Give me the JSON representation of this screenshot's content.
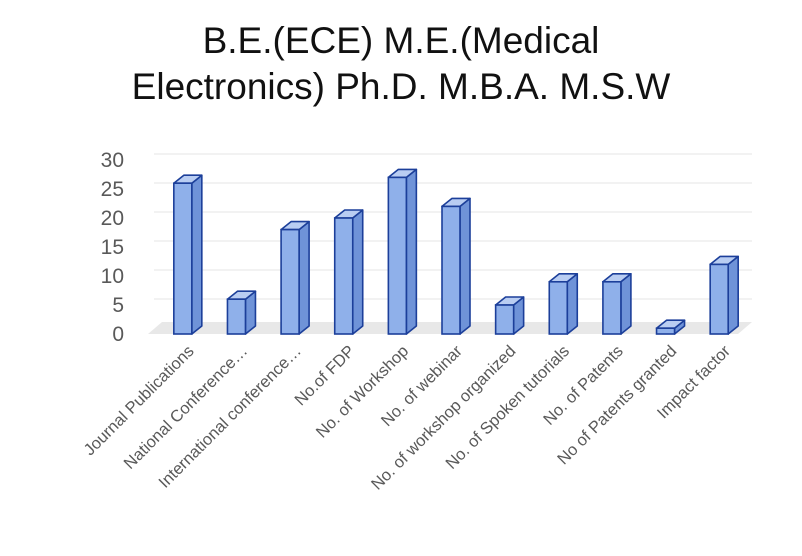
{
  "chart_data": {
    "type": "bar",
    "title_lines": [
      "B.E.(ECE) M.E.(Medical",
      "Electronics) Ph.D. M.B.A. M.S.W"
    ],
    "categories": [
      "Journal Publications",
      "National Conference…",
      "International conference…",
      "No.of FDP",
      "No. of Workshop",
      "No. of webinar",
      "No. of workshop organized",
      "No. of Spoken tutorials",
      "No. of Patents",
      "No of Patents granted",
      "Impact factor"
    ],
    "values": [
      26,
      6,
      18,
      20,
      27,
      22,
      5,
      9,
      9,
      1,
      12
    ],
    "ylim": [
      0,
      30
    ],
    "yticks": [
      "0",
      "5",
      "10",
      "15",
      "20",
      "25",
      "30"
    ],
    "grid": true,
    "bar_style": "3d-column",
    "colors": {
      "bar_face": "#8fb0ea",
      "bar_side": "#6f93d8",
      "bar_top": "#b9cdf2",
      "bar_edge": "#1c3f9a",
      "grid": "#e6e6e6",
      "floor": "#e8e8e8",
      "tick_text": "#595959",
      "title_text": "#111111"
    }
  }
}
